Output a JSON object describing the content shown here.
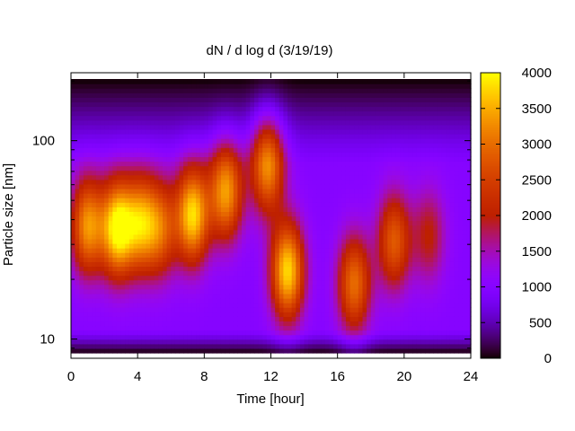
{
  "chart_data": {
    "type": "heatmap",
    "title": "dN / d log d (3/19/19)",
    "xlabel": "Time [hour]",
    "ylabel": "Particle size [nm]",
    "xlim": [
      0,
      24
    ],
    "ylim": [
      8,
      220
    ],
    "y_scale": "log",
    "x_ticks": [
      0,
      4,
      8,
      12,
      16,
      20,
      24
    ],
    "y_ticks": [
      10,
      100
    ],
    "colorbar": {
      "ticks": [
        0,
        500,
        1000,
        1500,
        2000,
        2500,
        3000,
        3500,
        4000
      ],
      "min": 0,
      "max": 4000,
      "palette": "black-purple-red-yellow"
    },
    "background_level": 1000,
    "blobs": [
      {
        "time": 1.0,
        "size_nm": 37,
        "peak": 3000
      },
      {
        "time": 2.8,
        "size_nm": 36,
        "peak": 3700
      },
      {
        "time": 4.2,
        "size_nm": 38,
        "peak": 2900
      },
      {
        "time": 5.4,
        "size_nm": 36,
        "peak": 2400
      },
      {
        "time": 7.3,
        "size_nm": 42,
        "peak": 3500
      },
      {
        "time": 9.3,
        "size_nm": 55,
        "peak": 3100
      },
      {
        "time": 11.8,
        "size_nm": 75,
        "peak": 3000
      },
      {
        "time": 13.0,
        "size_nm": 22,
        "peak": 3500
      },
      {
        "time": 17.0,
        "size_nm": 19,
        "peak": 2700
      },
      {
        "time": 19.4,
        "size_nm": 31,
        "peak": 2500
      },
      {
        "time": 21.5,
        "size_nm": 33,
        "peak": 1700
      }
    ]
  }
}
